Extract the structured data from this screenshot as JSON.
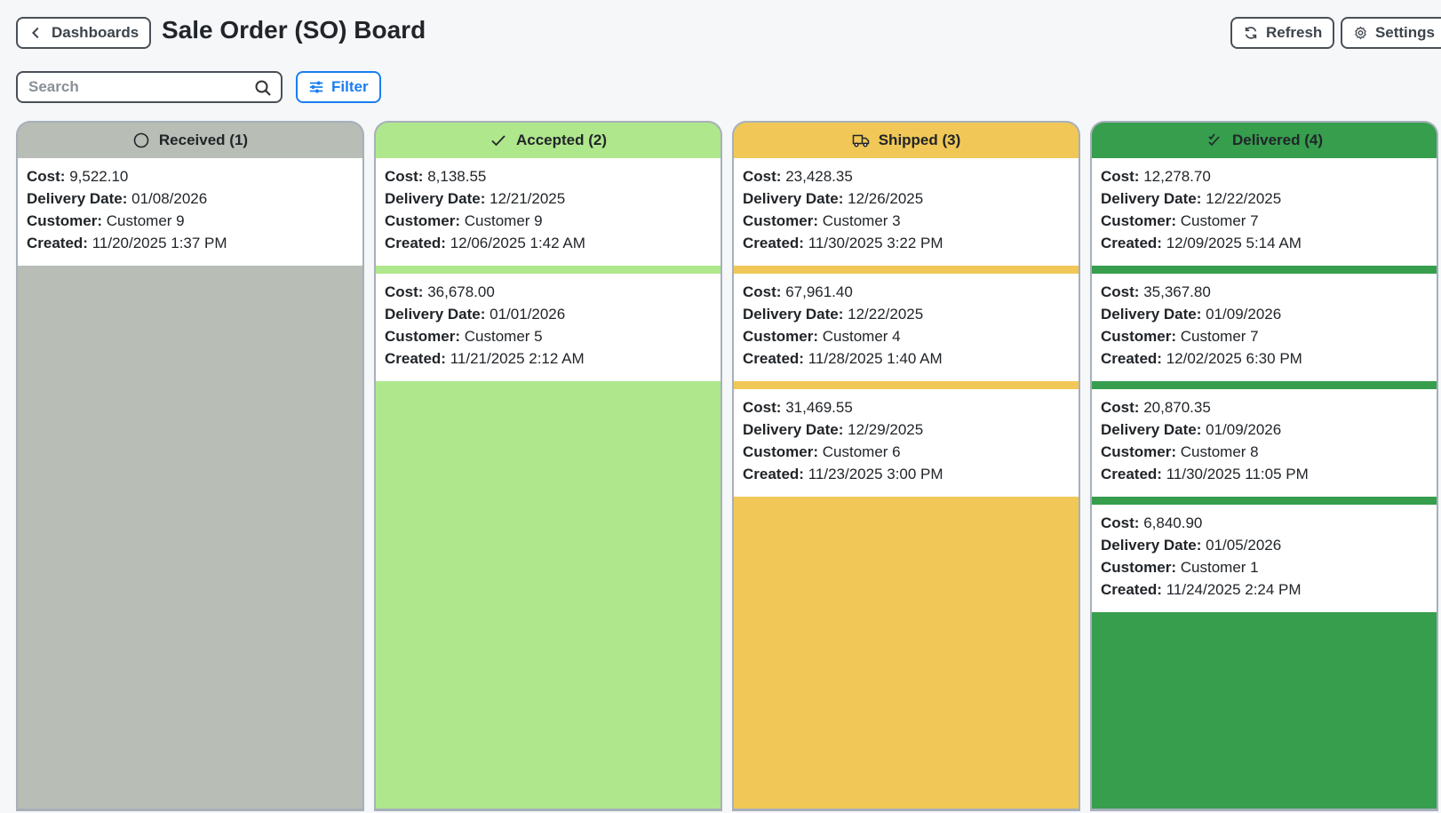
{
  "header": {
    "back_label": "Dashboards",
    "title": "Sale Order (SO) Board",
    "refresh_label": "Refresh",
    "settings_label": "Settings"
  },
  "toolbar": {
    "search_placeholder": "Search",
    "search_value": "",
    "filter_label": "Filter"
  },
  "labels": {
    "cost": "Cost:",
    "delivery": "Delivery Date:",
    "customer": "Customer:",
    "created": "Created:"
  },
  "columns": [
    {
      "title": "Received (1)",
      "icon": "circle-icon",
      "color": "#b8bdb5",
      "cards": [
        {
          "cost": "9,522.10",
          "delivery": "01/08/2026",
          "customer": "Customer 9",
          "created": "11/20/2025 1:37 PM"
        }
      ]
    },
    {
      "title": "Accepted (2)",
      "icon": "check-icon",
      "color": "#afe78d",
      "cards": [
        {
          "cost": "8,138.55",
          "delivery": "12/21/2025",
          "customer": "Customer 9",
          "created": "12/06/2025 1:42 AM"
        },
        {
          "cost": "36,678.00",
          "delivery": "01/01/2026",
          "customer": "Customer 5",
          "created": "11/21/2025 2:12 AM"
        }
      ]
    },
    {
      "title": "Shipped (3)",
      "icon": "truck-icon",
      "color": "#f1c857",
      "cards": [
        {
          "cost": "23,428.35",
          "delivery": "12/26/2025",
          "customer": "Customer 3",
          "created": "11/30/2025 3:22 PM"
        },
        {
          "cost": "67,961.40",
          "delivery": "12/22/2025",
          "customer": "Customer 4",
          "created": "11/28/2025 1:40 AM"
        },
        {
          "cost": "31,469.55",
          "delivery": "12/29/2025",
          "customer": "Customer 6",
          "created": "11/23/2025 3:00 PM"
        }
      ]
    },
    {
      "title": "Delivered (4)",
      "icon": "double-check-icon",
      "color": "#369e4d",
      "cards": [
        {
          "cost": "12,278.70",
          "delivery": "12/22/2025",
          "customer": "Customer 7",
          "created": "12/09/2025 5:14 AM"
        },
        {
          "cost": "35,367.80",
          "delivery": "01/09/2026",
          "customer": "Customer 7",
          "created": "12/02/2025 6:30 PM"
        },
        {
          "cost": "20,870.35",
          "delivery": "01/09/2026",
          "customer": "Customer 8",
          "created": "11/30/2025 11:05 PM"
        },
        {
          "cost": "6,840.90",
          "delivery": "01/05/2026",
          "customer": "Customer 1",
          "created": "11/24/2025 2:24 PM"
        }
      ]
    }
  ]
}
